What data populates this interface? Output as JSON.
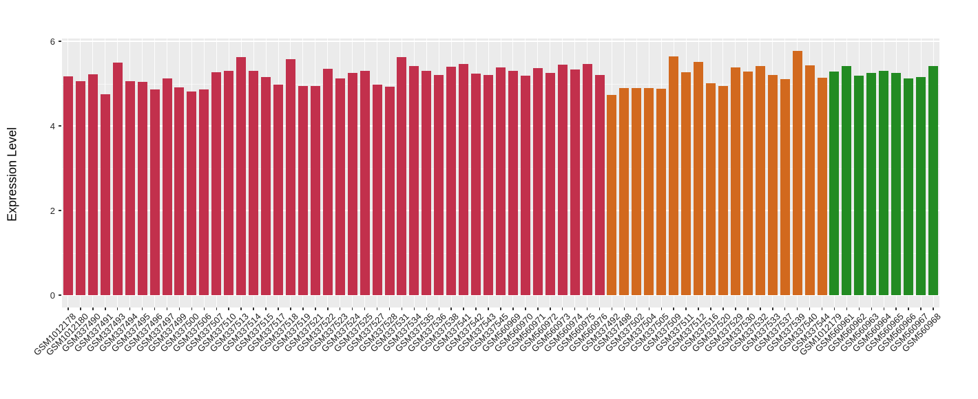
{
  "chart_data": {
    "type": "bar",
    "title": "",
    "xlabel": "",
    "ylabel": "Expression Level",
    "ylim": [
      0,
      6
    ],
    "yticks": [
      0,
      2,
      4,
      6
    ],
    "yticks_minor": [
      1,
      3,
      5
    ],
    "grid": "on",
    "legend": "none",
    "panel_bg": "#EBEBEB",
    "grid_color": "#FFFFFF",
    "tick_color": "#333333",
    "categories": [
      "GSM1012178",
      "GSM1012180",
      "GSM337490",
      "GSM337491",
      "GSM337493",
      "GSM337494",
      "GSM337495",
      "GSM337496",
      "GSM337497",
      "GSM337499",
      "GSM337500",
      "GSM337506",
      "GSM337507",
      "GSM337510",
      "GSM337513",
      "GSM337514",
      "GSM337515",
      "GSM337517",
      "GSM337518",
      "GSM337519",
      "GSM337521",
      "GSM337522",
      "GSM337523",
      "GSM337524",
      "GSM337525",
      "GSM337527",
      "GSM337528",
      "GSM337531",
      "GSM337534",
      "GSM337535",
      "GSM337536",
      "GSM337538",
      "GSM337541",
      "GSM337542",
      "GSM337543",
      "GSM337545",
      "GSM560969",
      "GSM560970",
      "GSM560971",
      "GSM560972",
      "GSM560973",
      "GSM560974",
      "GSM560975",
      "GSM560976",
      "GSM337492",
      "GSM337498",
      "GSM337502",
      "GSM337504",
      "GSM337505",
      "GSM337509",
      "GSM337511",
      "GSM337512",
      "GSM337516",
      "GSM337520",
      "GSM337529",
      "GSM337530",
      "GSM337532",
      "GSM337533",
      "GSM337537",
      "GSM337539",
      "GSM337540",
      "GSM337544",
      "GSM1012179",
      "GSM560961",
      "GSM560962",
      "GSM560963",
      "GSM560964",
      "GSM560965",
      "GSM560966",
      "GSM560967",
      "GSM560968"
    ],
    "values": [
      5.17,
      5.05,
      5.22,
      4.75,
      5.49,
      5.06,
      5.04,
      4.86,
      5.12,
      4.91,
      4.82,
      4.86,
      5.27,
      5.3,
      5.63,
      5.3,
      5.15,
      4.98,
      5.58,
      4.94,
      4.94,
      5.35,
      5.12,
      5.26,
      5.3,
      4.97,
      4.93,
      5.63,
      5.42,
      5.3,
      5.2,
      5.4,
      5.47,
      5.24,
      5.21,
      5.38,
      5.3,
      5.18,
      5.36,
      5.25,
      5.44,
      5.33,
      5.46,
      5.21,
      4.73,
      4.89,
      4.9,
      4.9,
      4.87,
      5.64,
      5.27,
      5.52,
      5.01,
      4.94,
      5.39,
      5.29,
      5.42,
      5.21,
      5.11,
      5.77,
      5.43,
      5.14,
      5.28,
      5.41,
      5.19,
      5.25,
      5.3,
      5.25,
      5.12,
      5.15,
      5.41
    ],
    "groups": [
      {
        "name": "group-1",
        "color": "#C2304C",
        "start": 0,
        "count": 44
      },
      {
        "name": "group-2",
        "color": "#D2691E",
        "start": 44,
        "count": 18
      },
      {
        "name": "group-3",
        "color": "#228B22",
        "start": 62,
        "count": 9
      }
    ]
  }
}
